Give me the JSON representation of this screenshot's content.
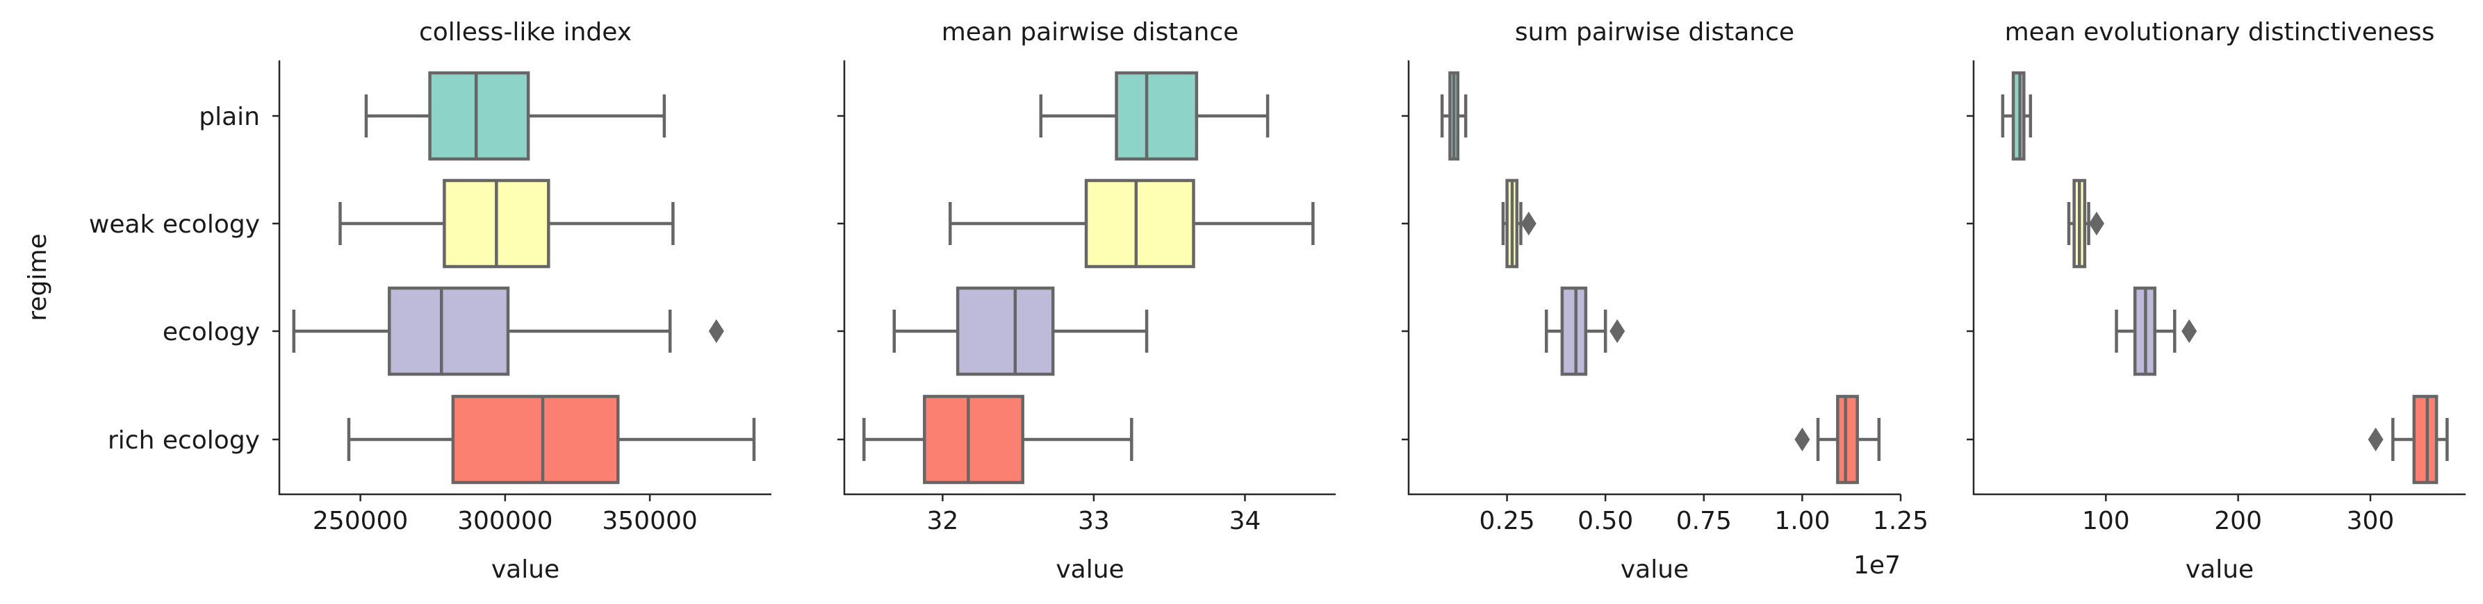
{
  "chart_data": [
    {
      "type": "box",
      "title": "colless-like index",
      "xlabel": "value",
      "ylabel": "regime",
      "categories": [
        "plain",
        "weak ecology",
        "ecology",
        "rich ecology"
      ],
      "colors": [
        "#8dd3c7",
        "#ffffb3",
        "#bebada",
        "#fb8072"
      ],
      "xlim": [
        222000,
        392000
      ],
      "xticks": [
        250000,
        300000,
        350000
      ],
      "xtick_labels": [
        "250000",
        "300000",
        "350000"
      ],
      "offset_label": "",
      "boxes": [
        {
          "category": "plain",
          "whisker_low": 252000,
          "q1": 274000,
          "median": 290000,
          "q3": 308000,
          "whisker_high": 355000,
          "outliers": []
        },
        {
          "category": "weak ecology",
          "whisker_low": 243000,
          "q1": 279000,
          "median": 297000,
          "q3": 315000,
          "whisker_high": 358000,
          "outliers": []
        },
        {
          "category": "ecology",
          "whisker_low": 227000,
          "q1": 260000,
          "median": 278000,
          "q3": 301000,
          "whisker_high": 357000,
          "outliers": [
            373000
          ]
        },
        {
          "category": "rich ecology",
          "whisker_low": 246000,
          "q1": 282000,
          "median": 313000,
          "q3": 339000,
          "whisker_high": 386000,
          "outliers": []
        }
      ]
    },
    {
      "type": "box",
      "title": "mean pairwise distance",
      "xlabel": "value",
      "categories": [
        "plain",
        "weak ecology",
        "ecology",
        "rich ecology"
      ],
      "colors": [
        "#8dd3c7",
        "#ffffb3",
        "#bebada",
        "#fb8072"
      ],
      "xlim": [
        31.35,
        34.6
      ],
      "xticks": [
        32,
        33,
        34
      ],
      "xtick_labels": [
        "32",
        "33",
        "34"
      ],
      "offset_label": "",
      "boxes": [
        {
          "category": "plain",
          "whisker_low": 32.65,
          "q1": 33.15,
          "median": 33.35,
          "q3": 33.68,
          "whisker_high": 34.15,
          "outliers": []
        },
        {
          "category": "weak ecology",
          "whisker_low": 32.05,
          "q1": 32.95,
          "median": 33.28,
          "q3": 33.66,
          "whisker_high": 34.45,
          "outliers": []
        },
        {
          "category": "ecology",
          "whisker_low": 31.68,
          "q1": 32.1,
          "median": 32.48,
          "q3": 32.73,
          "whisker_high": 33.35,
          "outliers": []
        },
        {
          "category": "rich ecology",
          "whisker_low": 31.48,
          "q1": 31.88,
          "median": 32.17,
          "q3": 32.53,
          "whisker_high": 33.25,
          "outliers": []
        }
      ]
    },
    {
      "type": "box",
      "title": "sum pairwise distance",
      "xlabel": "value",
      "categories": [
        "plain",
        "weak ecology",
        "ecology",
        "rich ecology"
      ],
      "colors": [
        "#8dd3c7",
        "#ffffb3",
        "#bebada",
        "#fb8072"
      ],
      "xlim": [
        0.0,
        1.25
      ],
      "xticks": [
        0.25,
        0.5,
        0.75,
        1.0,
        1.25
      ],
      "xtick_labels": [
        "0.25",
        "0.50",
        "0.75",
        "1.00",
        "1.25"
      ],
      "offset_label": "1e7",
      "boxes": [
        {
          "category": "plain",
          "whisker_low": 0.085,
          "q1": 0.105,
          "median": 0.115,
          "q3": 0.125,
          "whisker_high": 0.145,
          "outliers": []
        },
        {
          "category": "weak ecology",
          "whisker_low": 0.24,
          "q1": 0.25,
          "median": 0.263,
          "q3": 0.275,
          "whisker_high": 0.285,
          "outliers": [
            0.305
          ]
        },
        {
          "category": "ecology",
          "whisker_low": 0.35,
          "q1": 0.39,
          "median": 0.425,
          "q3": 0.45,
          "whisker_high": 0.5,
          "outliers": [
            0.53
          ]
        },
        {
          "category": "rich ecology",
          "whisker_low": 1.04,
          "q1": 1.09,
          "median": 1.11,
          "q3": 1.14,
          "whisker_high": 1.195,
          "outliers": [
            1.0
          ]
        }
      ]
    },
    {
      "type": "box",
      "title": "mean evolutionary distinctiveness",
      "xlabel": "value",
      "categories": [
        "plain",
        "weak ecology",
        "ecology",
        "rich ecology"
      ],
      "colors": [
        "#8dd3c7",
        "#ffffb3",
        "#bebada",
        "#fb8072"
      ],
      "xlim": [
        0,
        372
      ],
      "xticks": [
        100,
        200,
        300
      ],
      "xtick_labels": [
        "100",
        "200",
        "300"
      ],
      "offset_label": "",
      "boxes": [
        {
          "category": "plain",
          "whisker_low": 22,
          "q1": 30,
          "median": 35,
          "q3": 38,
          "whisker_high": 43,
          "outliers": []
        },
        {
          "category": "weak ecology",
          "whisker_low": 72,
          "q1": 76,
          "median": 80,
          "q3": 84,
          "whisker_high": 87,
          "outliers": [
            93
          ]
        },
        {
          "category": "ecology",
          "whisker_low": 108,
          "q1": 122,
          "median": 130,
          "q3": 137,
          "whisker_high": 152,
          "outliers": [
            163
          ]
        },
        {
          "category": "rich ecology",
          "whisker_low": 317,
          "q1": 333,
          "median": 343,
          "q3": 350,
          "whisker_high": 358,
          "outliers": [
            304
          ]
        }
      ]
    }
  ]
}
